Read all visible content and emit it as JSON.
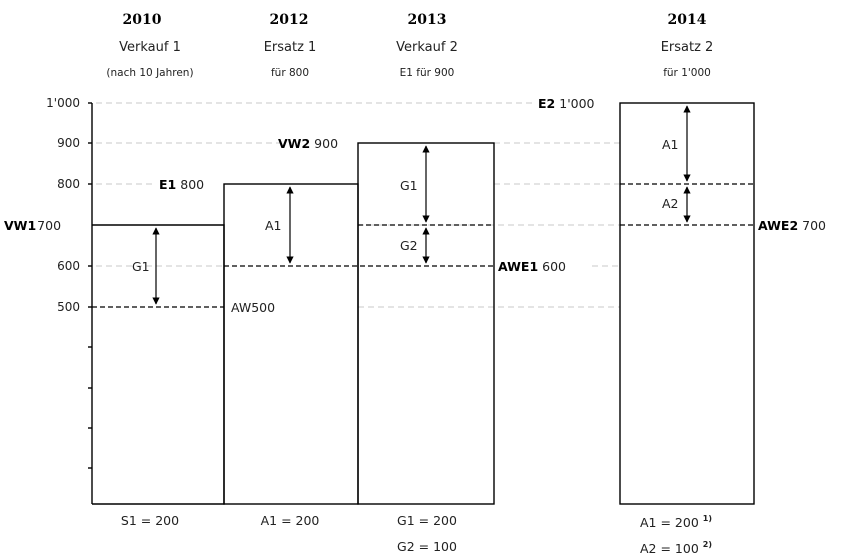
{
  "columns": [
    {
      "year": "2010",
      "title": "Verkauf 1",
      "sub": "(nach 10 Jahren)",
      "foot": [
        "S1 = 200"
      ]
    },
    {
      "year": "2012",
      "title": "Ersatz 1",
      "sub": "für 800",
      "foot": [
        "A1 = 200"
      ]
    },
    {
      "year": "2013",
      "title": "Verkauf 2",
      "sub": "E1 für 900",
      "foot": [
        "G1 = 200",
        "G2 = 100"
      ]
    },
    {
      "year": "2014",
      "title": "Ersatz 2",
      "sub": "für 1'000",
      "foot": [
        "A1 = 200",
        "A2 = 100"
      ],
      "foot_notes": [
        "1)",
        "2)"
      ]
    }
  ],
  "y_ticks": [
    {
      "label": "1'000",
      "value": 1000
    },
    {
      "label": "900",
      "value": 900
    },
    {
      "label": "800",
      "value": 800
    },
    {
      "label": "700",
      "value": 700
    },
    {
      "label": "600",
      "value": 600
    },
    {
      "label": "500",
      "value": 500
    }
  ],
  "y_minor_ticks": [
    400,
    300,
    200,
    100
  ],
  "markers": {
    "vw1": {
      "code": "VW1",
      "value": "700"
    },
    "aw": {
      "code": "AW",
      "value": "500"
    },
    "e1": {
      "code": "E1",
      "value": "800"
    },
    "vw2": {
      "code": "VW2",
      "value": "900"
    },
    "awe1": {
      "code": "AWE1",
      "value": "600"
    },
    "e2": {
      "code": "E2",
      "value": "1'000"
    },
    "awe2": {
      "code": "AWE2",
      "value": "700"
    }
  },
  "arrows": {
    "g1_left": "G1",
    "a1_mid": "A1",
    "g1_right": "G1",
    "g2_right": "G2",
    "a1_far": "A1",
    "a2_far": "A2"
  }
}
